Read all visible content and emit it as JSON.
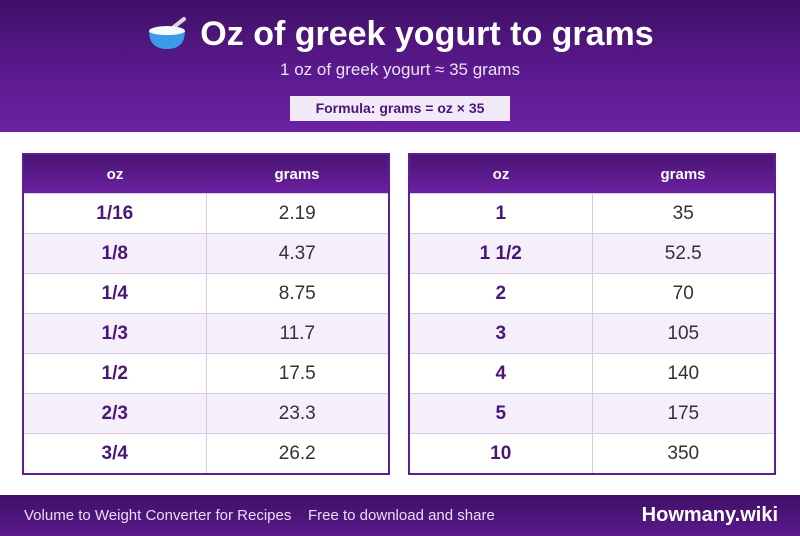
{
  "header": {
    "title": "Oz of greek yogurt to grams",
    "icon": "bowl-with-spoon-icon",
    "subtitle": "1 oz of greek yogurt ≈ 35 grams",
    "formula": "Formula: grams = oz × 35"
  },
  "tables": [
    {
      "columns": [
        "oz",
        "grams"
      ],
      "rows": [
        [
          "1/16",
          "2.19"
        ],
        [
          "1/8",
          "4.37"
        ],
        [
          "1/4",
          "8.75"
        ],
        [
          "1/3",
          "11.7"
        ],
        [
          "1/2",
          "17.5"
        ],
        [
          "2/3",
          "23.3"
        ],
        [
          "3/4",
          "26.2"
        ]
      ]
    },
    {
      "columns": [
        "oz",
        "grams"
      ],
      "rows": [
        [
          "1",
          "35"
        ],
        [
          "1 1/2",
          "52.5"
        ],
        [
          "2",
          "70"
        ],
        [
          "3",
          "105"
        ],
        [
          "4",
          "140"
        ],
        [
          "5",
          "175"
        ],
        [
          "10",
          "350"
        ]
      ]
    }
  ],
  "footer": {
    "left": "Volume to Weight Converter for Recipes",
    "middle": "Free to download and share",
    "brand": "Howmany.wiki"
  },
  "colors": {
    "accent": "#5e1d93",
    "header_dark": "#3f1066",
    "row_alt": "#f4effa"
  }
}
